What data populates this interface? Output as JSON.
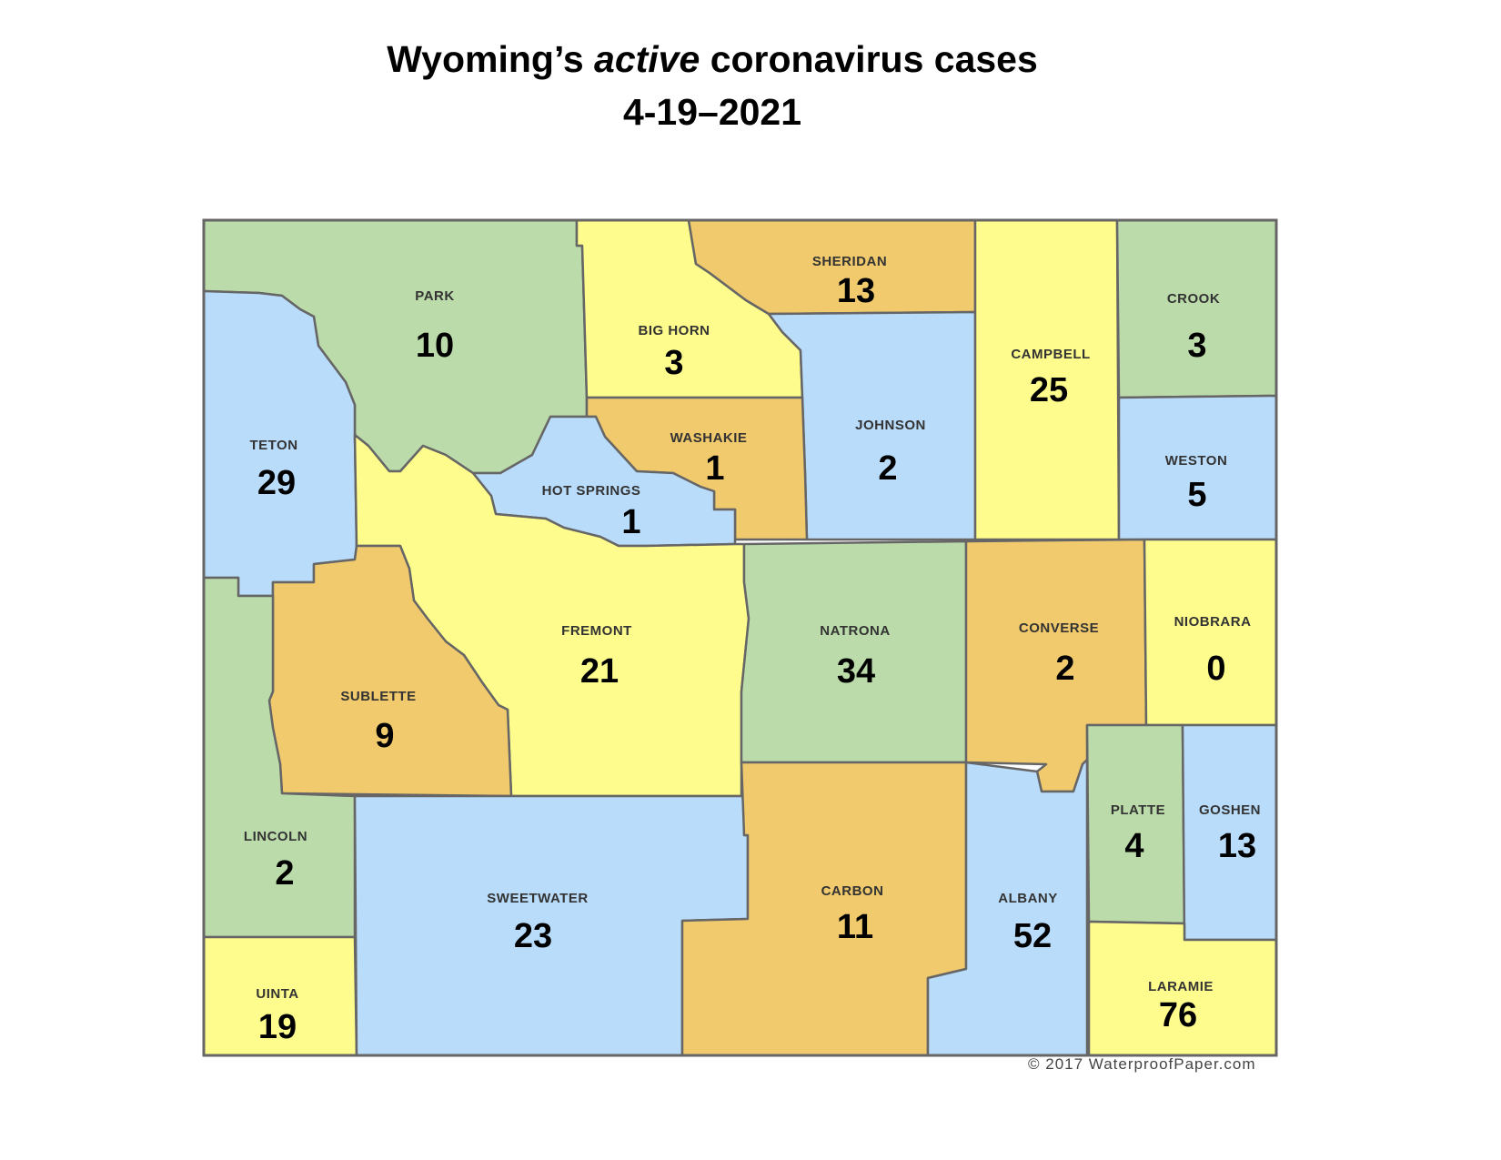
{
  "title": {
    "prefix": "Wyoming’s ",
    "emphasis": "active",
    "suffix": " coronavirus cases",
    "date": "4-19–2021"
  },
  "colors": {
    "green": "#bbdcaa",
    "yellow": "#fefc8c",
    "orange": "#f0ca6c",
    "blue": "#b9dcfb",
    "border": "#666666"
  },
  "counties": [
    {
      "name": "PARK",
      "cases": "10",
      "color": "green"
    },
    {
      "name": "TETON",
      "cases": "29",
      "color": "blue"
    },
    {
      "name": "BIG HORN",
      "cases": "3",
      "color": "yellow"
    },
    {
      "name": "SHERIDAN",
      "cases": "13",
      "color": "orange"
    },
    {
      "name": "JOHNSON",
      "cases": "2",
      "color": "blue"
    },
    {
      "name": "WASHAKIE",
      "cases": "1",
      "color": "orange"
    },
    {
      "name": "HOT SPRINGS",
      "cases": "1",
      "color": "blue"
    },
    {
      "name": "CAMPBELL",
      "cases": "25",
      "color": "yellow"
    },
    {
      "name": "CROOK",
      "cases": "3",
      "color": "green"
    },
    {
      "name": "WESTON",
      "cases": "5",
      "color": "blue"
    },
    {
      "name": "FREMONT",
      "cases": "21",
      "color": "yellow"
    },
    {
      "name": "SUBLETTE",
      "cases": "9",
      "color": "orange"
    },
    {
      "name": "LINCOLN",
      "cases": "2",
      "color": "green"
    },
    {
      "name": "UINTA",
      "cases": "19",
      "color": "yellow"
    },
    {
      "name": "SWEETWATER",
      "cases": "23",
      "color": "blue"
    },
    {
      "name": "NATRONA",
      "cases": "34",
      "color": "green"
    },
    {
      "name": "CARBON",
      "cases": "11",
      "color": "orange"
    },
    {
      "name": "CONVERSE",
      "cases": "2",
      "color": "orange"
    },
    {
      "name": "ALBANY",
      "cases": "52",
      "color": "blue"
    },
    {
      "name": "NIOBRARA",
      "cases": "0",
      "color": "yellow"
    },
    {
      "name": "PLATTE",
      "cases": "4",
      "color": "green"
    },
    {
      "name": "GOSHEN",
      "cases": "13",
      "color": "blue"
    },
    {
      "name": "LARAMIE",
      "cases": "76",
      "color": "yellow"
    }
  ],
  "copyright": "© 2017 WaterproofPaper.com"
}
